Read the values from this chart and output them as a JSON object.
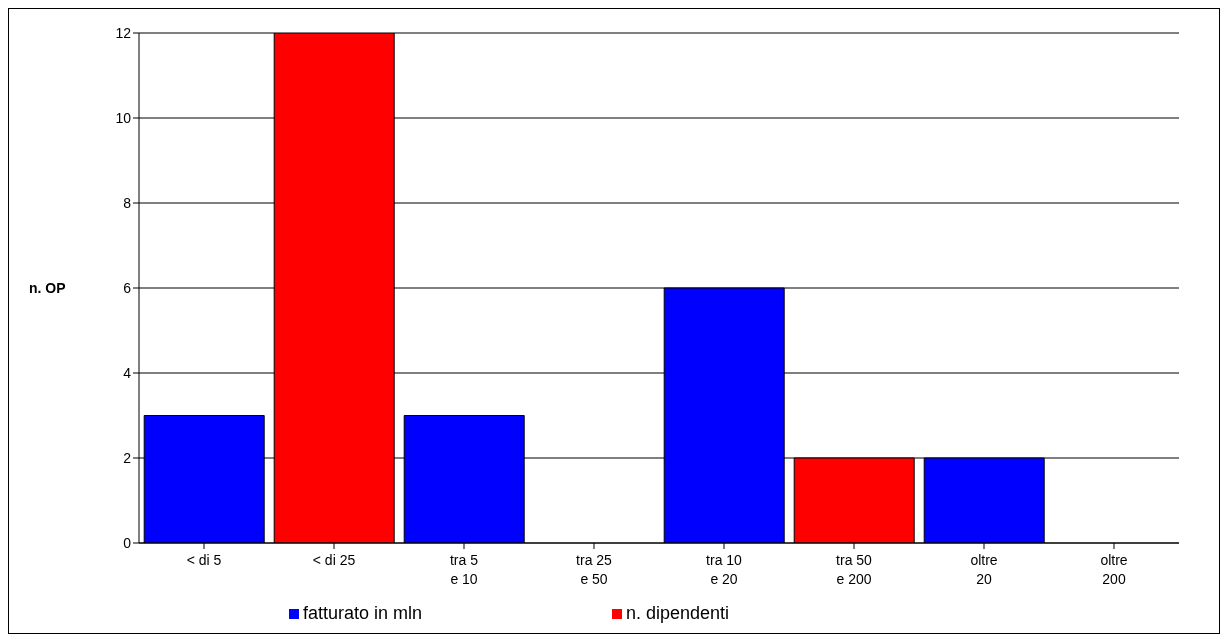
{
  "chart_data": {
    "type": "bar",
    "ylabel": "n. OP",
    "categories": [
      "< di 5",
      "< di 25",
      "tra 5\ne 10",
      "tra 25\ne 50",
      "tra 10\ne 20",
      "tra 50\ne 200",
      "oltre\n20",
      "oltre\n200"
    ],
    "series": [
      {
        "name": "fatturato in mln",
        "color": "#0000ff",
        "values": [
          3,
          null,
          3,
          null,
          6,
          null,
          2,
          null
        ]
      },
      {
        "name": "n. dipendenti",
        "color": "#ff0000",
        "values": [
          null,
          12,
          null,
          0,
          null,
          2,
          null,
          0
        ]
      }
    ],
    "stacked": true,
    "ylim": [
      0,
      12
    ],
    "yticks": [
      0,
      2,
      4,
      6,
      8,
      10,
      12
    ],
    "grid": "y",
    "legend": "bottom"
  }
}
